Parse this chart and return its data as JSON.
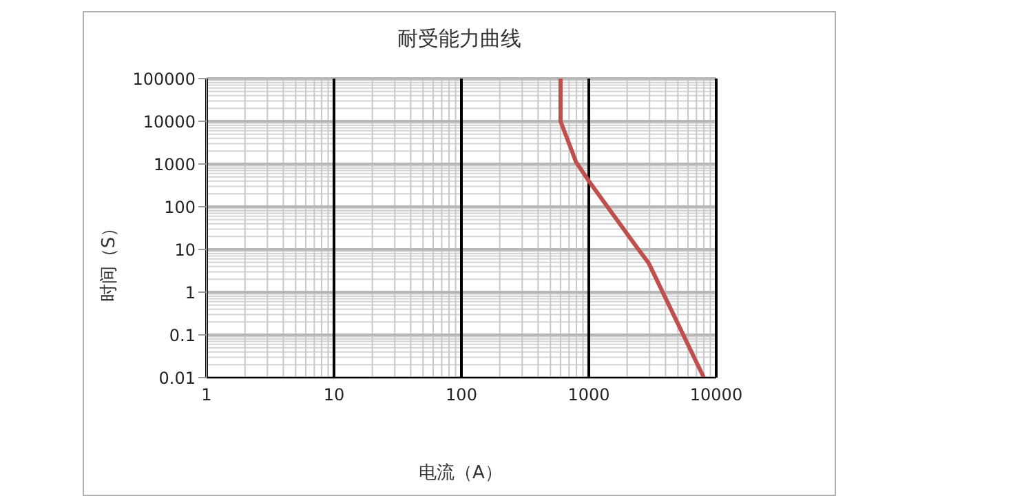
{
  "chart_data": {
    "type": "line",
    "title": "耐受能力曲线",
    "xlabel": "电流（A）",
    "ylabel": "时间（S）",
    "series": [
      {
        "color": "#c0504d",
        "x": [
          600,
          600,
          795,
          1000,
          2300,
          2960,
          8000
        ],
        "values": [
          100000,
          10000,
          1100,
          400,
          13,
          4.7,
          0.01
        ]
      }
    ],
    "log": "xy",
    "xlim": [
      1,
      10000
    ],
    "xticks": [
      1,
      10,
      100,
      1000,
      10000
    ],
    "ylim": [
      0.01,
      100000
    ],
    "yticks": [
      0.01,
      0.1,
      1,
      10,
      100,
      1000,
      10000,
      100000
    ],
    "grid": true,
    "marker": "none",
    "line_style": "solid"
  }
}
